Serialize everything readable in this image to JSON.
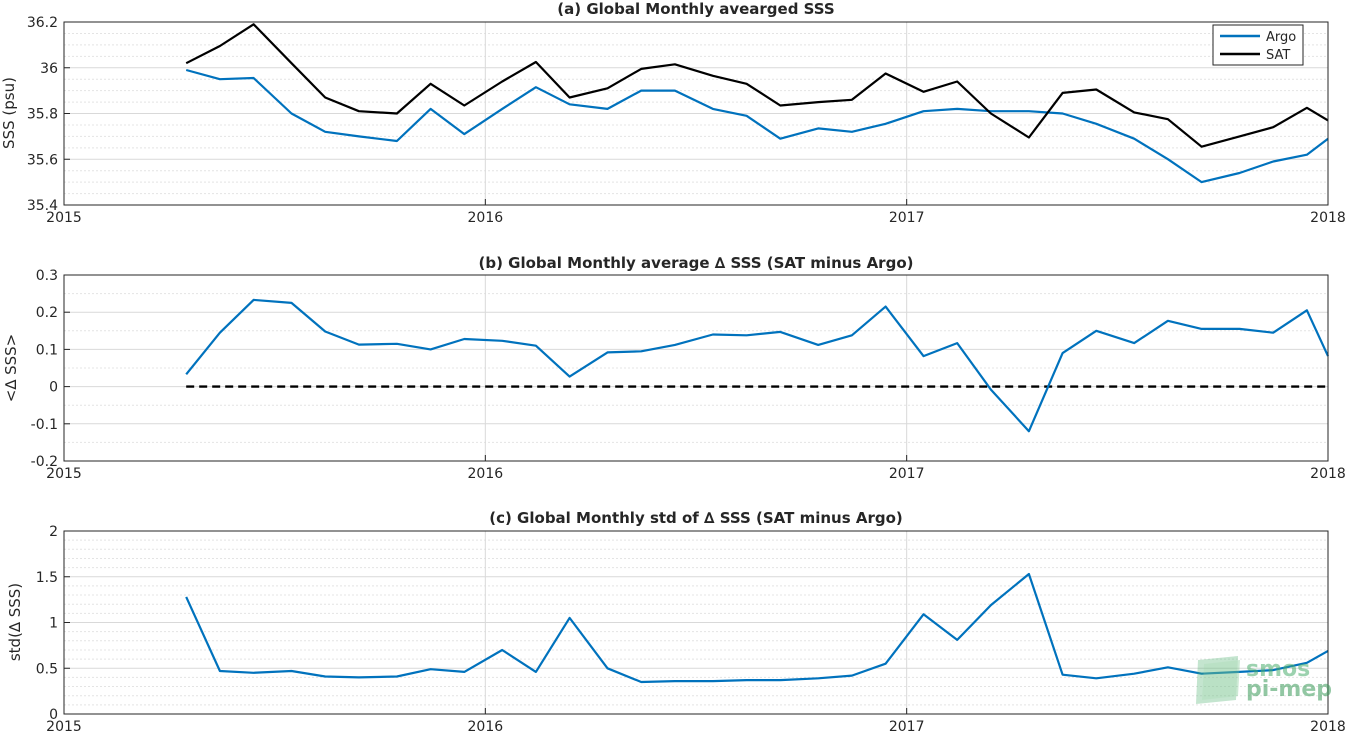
{
  "chart_data": [
    {
      "type": "line",
      "title": "(a) Global Monthly avearged SSS",
      "xlabel": "",
      "ylabel": "SSS (psu)",
      "xlim": [
        2015,
        2018
      ],
      "ylim": [
        35.4,
        36.2
      ],
      "xticks": [
        "2015",
        "2016",
        "2017",
        "2018"
      ],
      "yticks": [
        "35.4",
        "35.6",
        "35.8",
        "36",
        "36.2"
      ],
      "grid": true,
      "legend": "top-right",
      "x": [
        2015.29,
        2015.37,
        2015.45,
        2015.54,
        2015.62,
        2015.7,
        2015.79,
        2015.87,
        2015.95,
        2016.04,
        2016.12,
        2016.2,
        2016.29,
        2016.37,
        2016.45,
        2016.54,
        2016.62,
        2016.7,
        2016.79,
        2016.87,
        2016.95,
        2017.04,
        2017.12,
        2017.2,
        2017.29,
        2017.37,
        2017.45,
        2017.54,
        2017.62,
        2017.7,
        2017.79,
        2017.87,
        2017.95,
        2018.0
      ],
      "series": [
        {
          "name": "Argo",
          "color": "#0072BD",
          "values": [
            35.99,
            35.95,
            35.955,
            35.8,
            35.72,
            35.7,
            35.68,
            35.82,
            35.71,
            35.82,
            35.915,
            35.84,
            35.82,
            35.9,
            35.9,
            35.82,
            35.79,
            35.69,
            35.735,
            35.72,
            35.755,
            35.81,
            35.82,
            35.81,
            35.81,
            35.8,
            35.755,
            35.69,
            35.6,
            35.5,
            35.54,
            35.59,
            35.62,
            35.69
          ]
        },
        {
          "name": "SAT",
          "color": "#000000",
          "values": [
            36.02,
            36.095,
            36.19,
            36.02,
            35.87,
            35.81,
            35.8,
            35.93,
            35.835,
            35.94,
            36.025,
            35.87,
            35.91,
            35.995,
            36.015,
            35.965,
            35.93,
            35.835,
            35.85,
            35.86,
            35.975,
            35.895,
            35.94,
            35.8,
            35.695,
            35.89,
            35.905,
            35.805,
            35.775,
            35.655,
            35.7,
            35.74,
            35.825,
            35.77
          ]
        }
      ]
    },
    {
      "type": "line",
      "title": "(b) Global Monthly average ∆ SSS (SAT minus Argo)",
      "xlabel": "",
      "ylabel": "<∆ SSS>",
      "xlim": [
        2015,
        2018
      ],
      "ylim": [
        -0.2,
        0.3
      ],
      "xticks": [
        "2015",
        "2016",
        "2017",
        "2018"
      ],
      "yticks": [
        "-0.2",
        "-0.1",
        "0",
        "0.1",
        "0.2",
        "0.3"
      ],
      "grid": true,
      "reference_line": 0,
      "x": [
        2015.29,
        2015.37,
        2015.45,
        2015.54,
        2015.62,
        2015.7,
        2015.79,
        2015.87,
        2015.95,
        2016.04,
        2016.12,
        2016.2,
        2016.29,
        2016.37,
        2016.45,
        2016.54,
        2016.62,
        2016.7,
        2016.79,
        2016.87,
        2016.95,
        2017.04,
        2017.12,
        2017.2,
        2017.29,
        2017.37,
        2017.45,
        2017.54,
        2017.62,
        2017.7,
        2017.79,
        2017.87,
        2017.95,
        2018.0
      ],
      "series": [
        {
          "color": "#0072BD",
          "values": [
            0.033,
            0.145,
            0.233,
            0.225,
            0.148,
            0.113,
            0.115,
            0.1,
            0.128,
            0.123,
            0.11,
            0.027,
            0.092,
            0.095,
            0.112,
            0.14,
            0.138,
            0.147,
            0.112,
            0.138,
            0.215,
            0.082,
            0.117,
            -0.008,
            -0.12,
            0.09,
            0.15,
            0.117,
            0.177,
            0.155,
            0.155,
            0.145,
            0.205,
            0.082
          ]
        }
      ]
    },
    {
      "type": "line",
      "title": "(c) Global Monthly std of ∆ SSS (SAT minus Argo)",
      "xlabel": "",
      "ylabel": "std(∆ SSS)",
      "xlim": [
        2015,
        2018
      ],
      "ylim": [
        0,
        2
      ],
      "xticks": [
        "2015",
        "2016",
        "2017",
        "2018"
      ],
      "yticks": [
        "0",
        "0.5",
        "1",
        "1.5",
        "2"
      ],
      "grid": true,
      "x": [
        2015.29,
        2015.37,
        2015.45,
        2015.54,
        2015.62,
        2015.7,
        2015.79,
        2015.87,
        2015.95,
        2016.04,
        2016.12,
        2016.2,
        2016.29,
        2016.37,
        2016.45,
        2016.54,
        2016.62,
        2016.7,
        2016.79,
        2016.87,
        2016.95,
        2017.04,
        2017.12,
        2017.2,
        2017.29,
        2017.37,
        2017.45,
        2017.54,
        2017.62,
        2017.7,
        2017.79,
        2017.87,
        2017.95,
        2018.0
      ],
      "series": [
        {
          "color": "#0072BD",
          "values": [
            1.28,
            0.47,
            0.45,
            0.47,
            0.41,
            0.4,
            0.41,
            0.49,
            0.46,
            0.7,
            0.46,
            1.05,
            0.5,
            0.35,
            0.36,
            0.36,
            0.37,
            0.37,
            0.39,
            0.42,
            0.55,
            1.09,
            0.81,
            1.19,
            1.53,
            0.43,
            0.39,
            0.44,
            0.51,
            0.44,
            0.46,
            0.48,
            0.56,
            0.69
          ]
        }
      ]
    }
  ],
  "watermark": {
    "line1": "smos",
    "line2": "pi-mep",
    "color": "#4caf6e"
  }
}
